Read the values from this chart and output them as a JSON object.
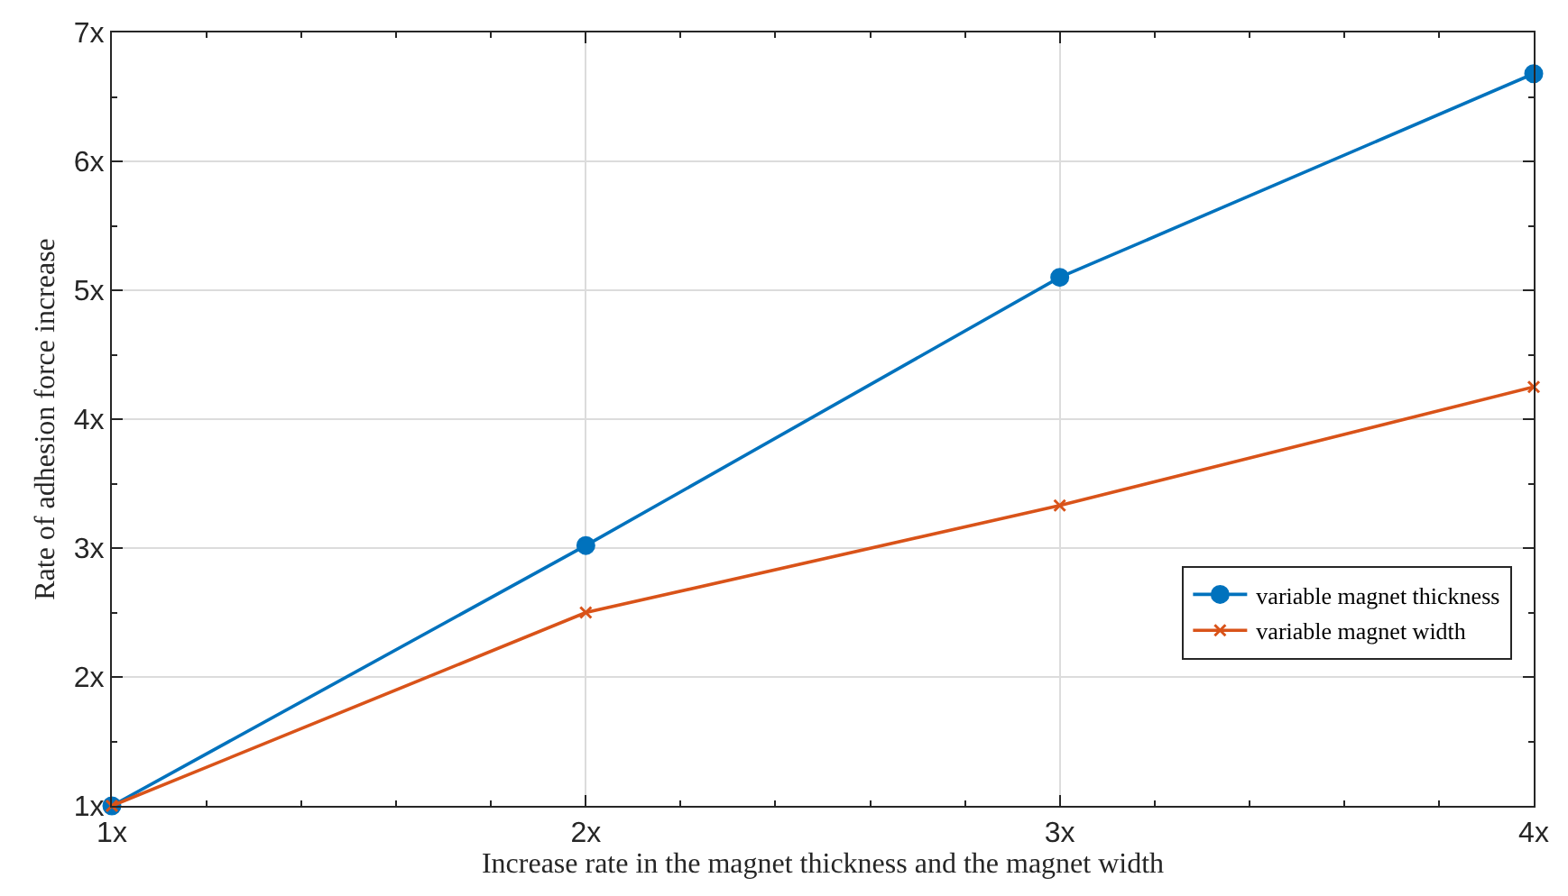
{
  "chart_data": {
    "type": "line",
    "xlabel": "Increase rate in the magnet thickness and the magnet width",
    "ylabel": "Rate of adhesion force increase",
    "x": [
      1,
      2,
      3,
      4
    ],
    "series": [
      {
        "name": "variable magnet thickness",
        "color": "#0072bd",
        "marker": "circle",
        "values": [
          1,
          3.02,
          5.1,
          6.68
        ]
      },
      {
        "name": "variable magnet width",
        "color": "#d95319",
        "marker": "cross",
        "values": [
          1,
          2.5,
          3.33,
          4.25
        ]
      }
    ],
    "xlim": [
      1,
      4
    ],
    "xticks": [
      {
        "value": 1,
        "label": "1x"
      },
      {
        "value": 2,
        "label": "2x"
      },
      {
        "value": 3,
        "label": "3x"
      },
      {
        "value": 4,
        "label": "4x"
      }
    ],
    "ylim": [
      1,
      7
    ],
    "yticks": [
      {
        "value": 1,
        "label": "1x"
      },
      {
        "value": 2,
        "label": "2x"
      },
      {
        "value": 3,
        "label": "3x"
      },
      {
        "value": 4,
        "label": "4x"
      },
      {
        "value": 5,
        "label": "5x"
      },
      {
        "value": 6,
        "label": "6x"
      },
      {
        "value": 7,
        "label": "7x"
      }
    ],
    "grid": true,
    "legend": "right",
    "line_style": "solid"
  }
}
